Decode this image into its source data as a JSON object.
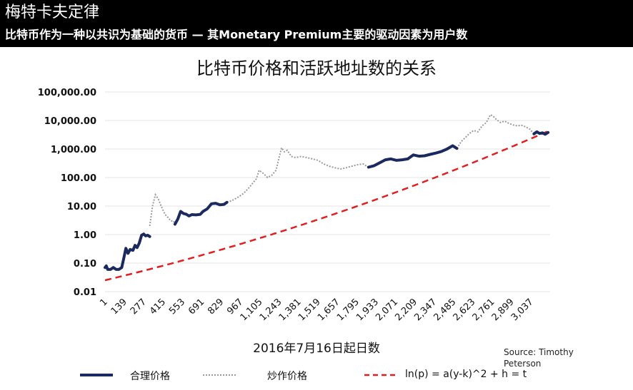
{
  "banner": {
    "title": "梅特卡夫定律",
    "subtitle": "比特币作为一种以共识为基础的货币 — 其Monetary Premium主要的驱动因素为用户数"
  },
  "colors": {
    "banner_bg": "#000000",
    "fair_price": "#1b2a5e",
    "speculative_price": "#9b9b9b",
    "model": "#e02020",
    "grid": "#e3e3e3"
  },
  "source": "Source: Timothy Peterson",
  "chart_data": {
    "type": "line",
    "title": "比特币价格和活跃地址数的关系",
    "xlabel": "2016年7月16日起日数",
    "ylabel": "",
    "yscale": "log",
    "ylim": [
      0.01,
      100000
    ],
    "yticks": [
      0.01,
      0.1,
      1,
      10,
      100,
      1000,
      10000,
      100000
    ],
    "ytick_labels": [
      "0.01",
      "0.10",
      "1.00",
      "10.00",
      "100.00",
      "1,000.00",
      "10,000.00",
      "100,000.00"
    ],
    "xlim": [
      1,
      3175
    ],
    "xticks": [
      1,
      139,
      277,
      415,
      553,
      691,
      829,
      967,
      1105,
      1243,
      1381,
      1519,
      1657,
      1795,
      1933,
      2071,
      2209,
      2347,
      2485,
      2623,
      2761,
      2899,
      3037
    ],
    "xtick_labels": [
      "1",
      "139",
      "277",
      "415",
      "553",
      "691",
      "829",
      "967",
      "1,105",
      "1,243",
      "1,381",
      "1,519",
      "1,657",
      "1,795",
      "1,933",
      "2,071",
      "2,209",
      "2,347",
      "2,485",
      "2,623",
      "2,761",
      "2,899",
      "3,037"
    ],
    "grid": true,
    "legend_position": "bottom",
    "series": [
      {
        "name": "合理价格",
        "style": "solid",
        "segments": [
          {
            "x": [
              1,
              10,
              20,
              40,
              60,
              80,
              100,
              120,
              135,
              150,
              165,
              180,
              200,
              215,
              230,
              245,
              262,
              277,
              290,
              305,
              320
            ],
            "y": [
              0.07,
              0.08,
              0.06,
              0.06,
              0.07,
              0.06,
              0.06,
              0.07,
              0.15,
              0.33,
              0.22,
              0.3,
              0.28,
              0.42,
              0.35,
              0.5,
              0.95,
              1.05,
              0.9,
              0.95,
              0.85
            ]
          },
          {
            "x": [
              500,
              520,
              540,
              560,
              580,
              600,
              620,
              650,
              680,
              700,
              730,
              760,
              790,
              820,
              850,
              870
            ],
            "y": [
              2.3,
              3.5,
              6.5,
              5.5,
              5.2,
              4.5,
              5,
              4.9,
              5.1,
              6.5,
              8,
              12,
              12.5,
              11,
              11.5,
              13.5
            ]
          },
          {
            "x": [
              1880,
              1920,
              1960,
              2000,
              2040,
              2080,
              2120,
              2160,
              2200,
              2240,
              2280,
              2320,
              2360,
              2400,
              2440,
              2480,
              2510
            ],
            "y": [
              230,
              260,
              330,
              420,
              450,
              400,
              420,
              450,
              620,
              560,
              580,
              650,
              720,
              820,
              1000,
              1300,
              1050
            ]
          },
          {
            "x": [
              3060,
              3080,
              3100,
              3120,
              3140,
              3160
            ],
            "y": [
              3400,
              4000,
              3500,
              3700,
              3300,
              3800
            ]
          }
        ]
      },
      {
        "name": "炒作价格",
        "style": "dotted",
        "segments": [
          {
            "x": [
              320,
              340,
              360,
              380,
              395,
              410,
              430,
              450,
              470,
              490,
              500
            ],
            "y": [
              2,
              10,
              25,
              18,
              12,
              8,
              5,
              4,
              3,
              3,
              2.3
            ]
          },
          {
            "x": [
              870,
              900,
              930,
              960,
              990,
              1020,
              1050,
              1080,
              1100,
              1130,
              1160,
              1190,
              1220,
              1240,
              1260,
              1280,
              1300,
              1330,
              1360,
              1400,
              1440,
              1480,
              1520,
              1560,
              1600,
              1640,
              1680,
              1720,
              1760,
              1800,
              1840,
              1880
            ],
            "y": [
              14,
              15,
              18,
              22,
              28,
              40,
              60,
              90,
              180,
              140,
              100,
              120,
              180,
              450,
              1100,
              800,
              900,
              550,
              500,
              550,
              500,
              450,
              400,
              300,
              250,
              220,
              200,
              220,
              250,
              280,
              300,
              230
            ]
          },
          {
            "x": [
              2510,
              2540,
              2570,
              2600,
              2630,
              2660,
              2690,
              2720,
              2750,
              2770,
              2790,
              2820,
              2850,
              2880,
              2910,
              2940,
              2970,
              3000,
              3030,
              3060
            ],
            "y": [
              1050,
              1800,
              2500,
              3500,
              4500,
              4000,
              6500,
              8500,
              16000,
              14000,
              11000,
              8500,
              9500,
              8000,
              7000,
              6500,
              6800,
              6000,
              5000,
              3400
            ]
          }
        ]
      },
      {
        "name": "ln(p) = a(y-k)^2 + h = t",
        "style": "dashed",
        "model": {
          "k": -3800,
          "h": -5.9,
          "y_at_x1": 0.025,
          "y_at_x3150": 4000
        }
      }
    ]
  },
  "legend": [
    {
      "label": "合理价格"
    },
    {
      "label": "炒作价格"
    },
    {
      "label": "ln(p) = a(y-k)^2 + h = t"
    }
  ]
}
